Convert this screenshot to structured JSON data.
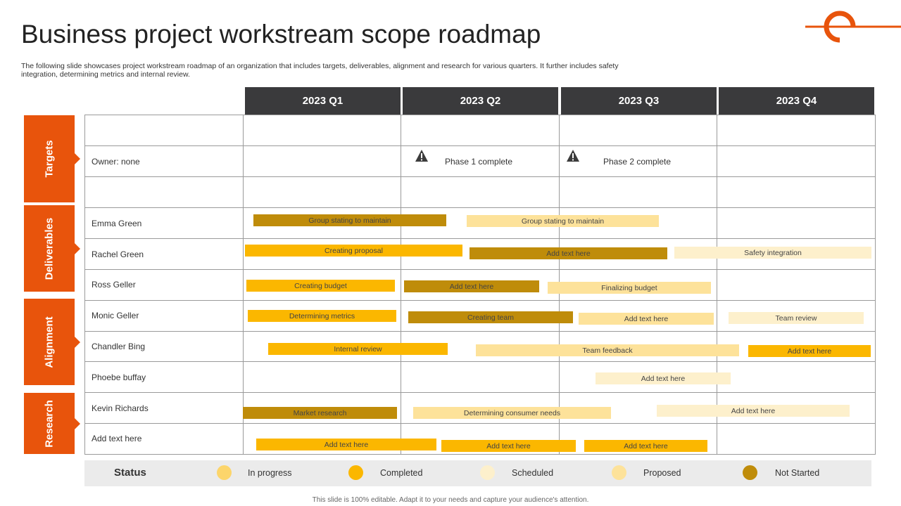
{
  "title": "Business project workstream scope roadmap",
  "description": "The following slide showcases project workstream roadmap of an organization that includes targets, deliverables, alignment and research for various quarters. It further includes safety integration, determining metrics and internal review.",
  "quarters": [
    "2023 Q1",
    "2023 Q2",
    "2023 Q3",
    "2023 Q4"
  ],
  "categories": [
    "Targets",
    "Deliverables",
    "Alignment",
    "Research"
  ],
  "rows": [
    "Owner: none",
    "Emma Green",
    "Rachel Green",
    "Ross Geller",
    "Monic Geller",
    "Chandler Bing",
    "Phoebe buffay",
    "Kevin Richards",
    "Add text here"
  ],
  "milestones": [
    "Phase 1 complete",
    "Phase 2 complete"
  ],
  "bars": [
    {
      "label": "Group stating to maintain",
      "status": "Not Started"
    },
    {
      "label": "Group stating to maintain",
      "status": "Proposed"
    },
    {
      "label": "Creating proposal",
      "status": "Completed"
    },
    {
      "label": "Add text here",
      "status": "Not Started"
    },
    {
      "label": "Safety integration",
      "status": "Scheduled"
    },
    {
      "label": "Creating budget",
      "status": "Completed"
    },
    {
      "label": "Add text here",
      "status": "Not Started"
    },
    {
      "label": "Finalizing budget",
      "status": "Proposed"
    },
    {
      "label": "Determining  metrics",
      "status": "Completed"
    },
    {
      "label": "Creating team",
      "status": "Not Started"
    },
    {
      "label": "Add text here",
      "status": "Proposed"
    },
    {
      "label": "Team review",
      "status": "Scheduled"
    },
    {
      "label": "Internal review",
      "status": "Completed"
    },
    {
      "label": "Team feedback",
      "status": "Proposed"
    },
    {
      "label": "Add text here",
      "status": "Completed"
    },
    {
      "label": "Add text here",
      "status": "Scheduled"
    },
    {
      "label": "Market research",
      "status": "Not Started"
    },
    {
      "label": "Determining  consumer needs",
      "status": "Proposed"
    },
    {
      "label": "Add text here",
      "status": "Scheduled"
    },
    {
      "label": "Add text here",
      "status": "Completed"
    },
    {
      "label": "Add text here",
      "status": "Completed"
    },
    {
      "label": "Add text here",
      "status": "Completed"
    }
  ],
  "status": {
    "label": "Status",
    "legend": [
      {
        "name": "In progress",
        "color": "#fcd56b"
      },
      {
        "name": "Completed",
        "color": "#fbb700"
      },
      {
        "name": "Scheduled",
        "color": "#fdf0cc"
      },
      {
        "name": "Proposed",
        "color": "#fde29a"
      },
      {
        "name": "Not Started",
        "color": "#bf8c0a"
      }
    ]
  },
  "colors": {
    "accent": "#e8540c",
    "header_bg": "#3a3a3c"
  },
  "footer": "This slide is 100% editable. Adapt it to your needs and capture your audience's attention."
}
